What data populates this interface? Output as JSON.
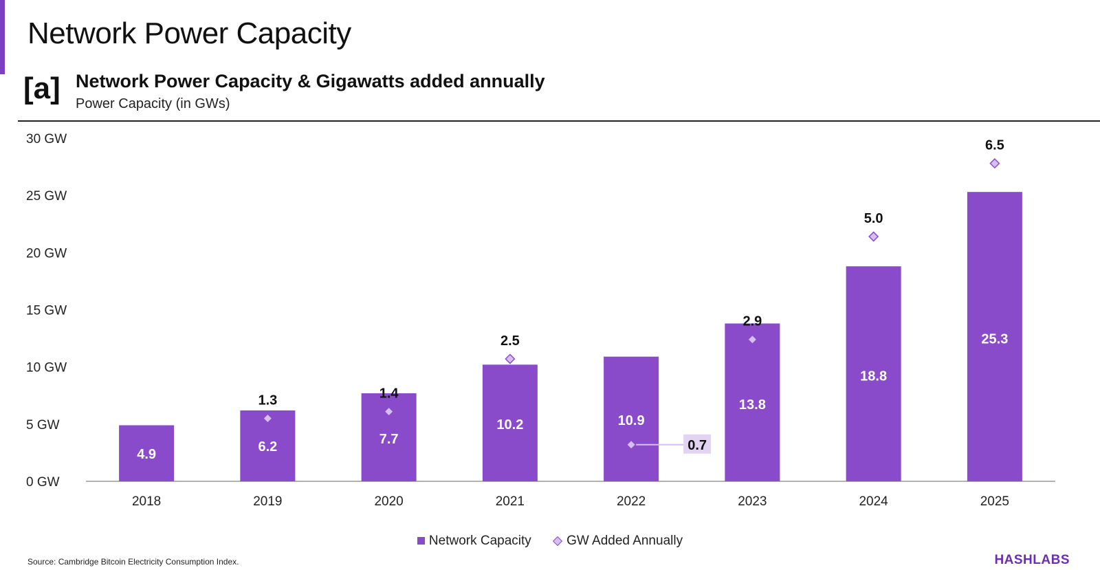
{
  "page": {
    "title": "Network Power Capacity",
    "panel_tag": "[a]",
    "source": "Source: Cambridge Bitcoin Electricity Consumption Index.",
    "brand": "HASHLABS"
  },
  "colors": {
    "bar": "#8a4bcb",
    "marker_fill": "#d6bff0",
    "marker_stroke": "#8a4bcb",
    "callout_bg": "#e3d3f3",
    "axis": "#999999"
  },
  "chart_data": {
    "type": "bar",
    "title": "Network Power Capacity & Gigawatts added annually",
    "subtitle": "Power Capacity (in GWs)",
    "categories": [
      "2018",
      "2019",
      "2020",
      "2021",
      "2022",
      "2023",
      "2024",
      "2025"
    ],
    "ylim": [
      0,
      30
    ],
    "yticks": [
      0,
      5,
      10,
      15,
      20,
      25,
      30
    ],
    "ytick_labels": [
      "0  GW",
      "5  GW",
      "10  GW",
      "15  GW",
      "20  GW",
      "25  GW",
      "30  GW"
    ],
    "series": [
      {
        "name": "Network Capacity",
        "kind": "bar",
        "values": [
          4.9,
          6.2,
          7.7,
          10.2,
          10.9,
          13.8,
          18.8,
          25.3
        ],
        "labels": [
          "4.9",
          "6.2",
          "7.7",
          "10.2",
          "10.9",
          "13.8",
          "18.8",
          "25.3"
        ]
      },
      {
        "name": "GW Added Annually",
        "kind": "diamond",
        "values": [
          null,
          1.3,
          1.4,
          2.5,
          0.7,
          2.9,
          5.0,
          6.5
        ],
        "labels": [
          null,
          "1.3",
          "1.4",
          "2.5",
          "0.7",
          "2.9",
          "5.0",
          "6.5"
        ],
        "marker_y": [
          null,
          5.5,
          6.1,
          10.7,
          3.2,
          12.4,
          21.4,
          27.8
        ]
      }
    ],
    "legend": [
      "Network Capacity",
      "GW Added Annually"
    ],
    "legend_position": "bottom-center",
    "grid": false
  }
}
